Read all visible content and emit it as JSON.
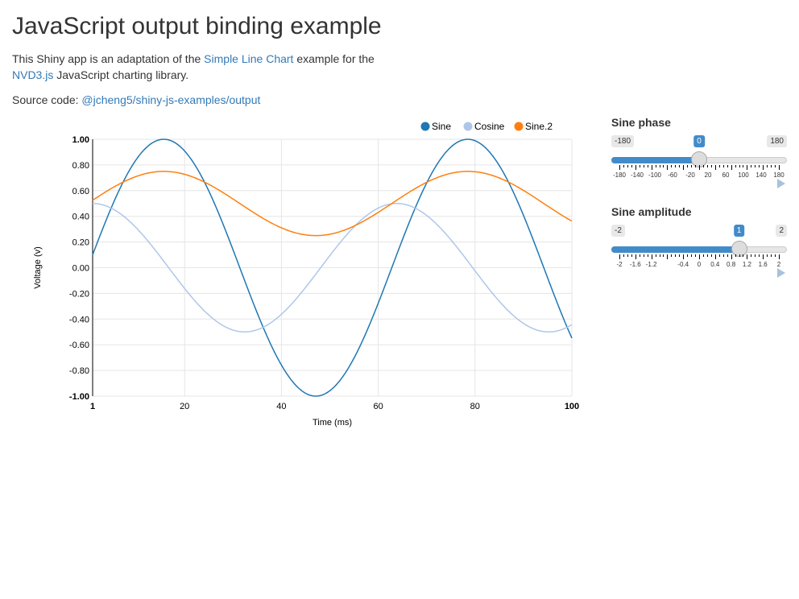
{
  "page": {
    "title": "JavaScript output binding example",
    "intro_prefix": "This Shiny app is an adaptation of the ",
    "intro_link1": "Simple Line Chart",
    "intro_mid": " example for the",
    "intro_link2": "NVD3.js",
    "intro_suffix": " JavaScript charting library.",
    "source_prefix": "Source code: ",
    "source_link": "@jcheng5/shiny-js-examples/output"
  },
  "sliders": [
    {
      "label": "Sine phase",
      "min_label": "-180",
      "max_label": "180",
      "value_label": "0",
      "min": -180,
      "max": 180,
      "value": 0,
      "tick_labels": [
        "-180",
        "-140",
        "-100",
        "-60",
        "-20",
        "20",
        "60",
        "100",
        "140",
        "180"
      ]
    },
    {
      "label": "Sine amplitude",
      "min_label": "-2",
      "max_label": "2",
      "value_label": "1",
      "min": -2,
      "max": 2,
      "value": 1,
      "tick_labels": [
        "-2",
        "-1.6",
        "-1.2",
        "-0.4",
        "0",
        "0.4",
        "0.8",
        "1.2",
        "1.6",
        "2"
      ]
    }
  ],
  "colors": {
    "sine": "#1f77b4",
    "cosine": "#aec7e8",
    "sine2": "#ff7f0e",
    "accent": "#428bca"
  },
  "chart_data": {
    "type": "line",
    "xlabel": "Time (ms)",
    "ylabel": "Voltage (v)",
    "xlim": [
      1,
      100
    ],
    "ylim": [
      -1,
      1
    ],
    "x_ticks": [
      "1",
      "20",
      "40",
      "60",
      "80",
      "100"
    ],
    "y_ticks": [
      "1.00",
      "0.80",
      "0.60",
      "0.40",
      "0.20",
      "0.00",
      "-0.20",
      "-0.40",
      "-0.60",
      "-0.80",
      "-1.00"
    ],
    "grid": true,
    "legend": "top-right",
    "series": [
      {
        "name": "Sine",
        "color": "#1f77b4",
        "amplitude": 1,
        "offset": 0,
        "phase": 0.1,
        "points": [
          [
            1,
            0.1
          ],
          [
            15.5,
            1.0
          ],
          [
            31,
            0.1
          ],
          [
            46.5,
            -1.0
          ],
          [
            62,
            -0.1
          ],
          [
            78.5,
            1.0
          ],
          [
            100,
            -0.54
          ]
        ]
      },
      {
        "name": "Cosine",
        "color": "#aec7e8",
        "amplitude": 0.5,
        "offset": 0,
        "phase": 1.57,
        "points": [
          [
            1,
            0.5
          ],
          [
            15.5,
            0.0
          ],
          [
            31,
            -0.5
          ],
          [
            47,
            0.0
          ],
          [
            63,
            0.5
          ],
          [
            78,
            0.0
          ],
          [
            94,
            -0.5
          ],
          [
            100,
            -0.42
          ]
        ]
      },
      {
        "name": "Sine.2",
        "color": "#ff7f0e",
        "amplitude": 0.25,
        "offset": 0.5,
        "phase": 0.1,
        "points": [
          [
            1,
            0.53
          ],
          [
            15.5,
            0.75
          ],
          [
            31,
            0.53
          ],
          [
            46.5,
            0.25
          ],
          [
            62,
            0.47
          ],
          [
            78.5,
            0.75
          ],
          [
            100,
            0.37
          ]
        ]
      }
    ]
  }
}
